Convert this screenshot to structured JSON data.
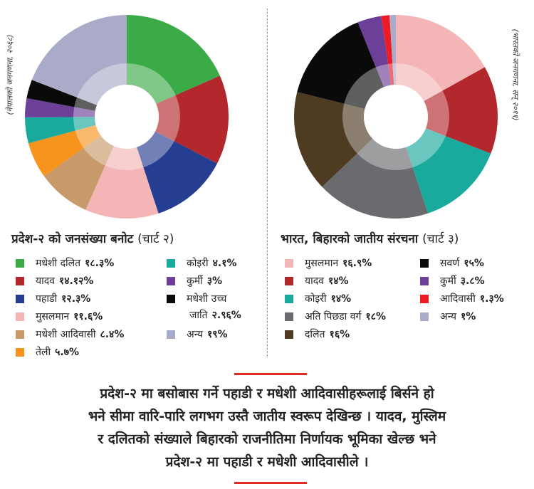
{
  "chart_data": [
    {
      "type": "pie",
      "title": "प्रदेश-२ को जनसंख्या बनोट",
      "chart_number": "(चार्ट २)",
      "source": "(नेपालको जनगणना, २०६८)",
      "categories": [
        "मधेशी दलित",
        "यादव",
        "पहाडी",
        "मुसलमान",
        "मधेशी आदिवासी",
        "तेली",
        "कोइरी",
        "कुर्मी",
        "मधेशी उच्च जाति",
        "अन्य"
      ],
      "values": [
        18.3,
        14.12,
        12.3,
        11.6,
        8.4,
        5.7,
        4.1,
        3,
        2.96,
        19
      ],
      "value_labels": [
        "१८.३%",
        "१४.१२%",
        "१२.३%",
        "११.६%",
        "८.४%",
        "५.७%",
        "४.१%",
        "३%",
        "२.९६%",
        "१९%"
      ],
      "colors": [
        "#3bab48",
        "#b2282c",
        "#263e92",
        "#f3b5b5",
        "#c89a6a",
        "#f7941d",
        "#1aa99d",
        "#6c3f98",
        "#0a0a0a",
        "#a9abc9"
      ]
    },
    {
      "type": "pie",
      "title": "भारत, बिहारको जातीय संरचना",
      "chart_number": "(चार्ट ३)",
      "source": "(भारतको जनगणना, सन् २०११)",
      "categories": [
        "मुसलमान",
        "यादव",
        "कोइरी",
        "अति पिछडा वर्ग",
        "दलित",
        "सवर्ण",
        "कुर्मी",
        "आदिवासी",
        "अन्य"
      ],
      "values": [
        16.9,
        14,
        14,
        18,
        16,
        15,
        3.8,
        1.3,
        1
      ],
      "value_labels": [
        "१६.९%",
        "१४%",
        "१४%",
        "१८%",
        "१६%",
        "१५%",
        "३.८%",
        "१.३%",
        "१%"
      ],
      "colors": [
        "#f3b5b5",
        "#b2282c",
        "#1aa99d",
        "#6a6b6e",
        "#4f3b22",
        "#0a0a0a",
        "#6c3f98",
        "#ec1c24",
        "#a9abc9"
      ]
    }
  ],
  "left_legend_rows": [
    {
      "label": "मधेशी दलित",
      "value": "१८.३%",
      "color": "#3bab48"
    },
    {
      "label": "यादव",
      "value": "१४.१२%",
      "color": "#b2282c"
    },
    {
      "label": "पहाडी",
      "value": "१२.३%",
      "color": "#263e92"
    },
    {
      "label": "मुसलमान",
      "value": "११.६%",
      "color": "#f3b5b5"
    },
    {
      "label": "मधेशी आदिवासी",
      "value": "८.४%",
      "color": "#c89a6a"
    },
    {
      "label": "तेली",
      "value": "५.७%",
      "color": "#f7941d"
    },
    {
      "label": "कोइरी",
      "value": "४.१%",
      "color": "#1aa99d"
    },
    {
      "label": "कुर्मी",
      "value": "३%",
      "color": "#6c3f98"
    },
    {
      "label": "मधेशी उच्च",
      "label_cont": "जाति",
      "value": "२.९६%",
      "color": "#0a0a0a"
    },
    {
      "label": "अन्य",
      "value": "१९%",
      "color": "#a9abc9"
    }
  ],
  "right_legend_rows": [
    {
      "label": "मुसलमान",
      "value": "१६.९%",
      "color": "#f3b5b5"
    },
    {
      "label": "यादव",
      "value": "१४%",
      "color": "#b2282c"
    },
    {
      "label": "कोइरी",
      "value": "१४%",
      "color": "#1aa99d"
    },
    {
      "label": "अति पिछडा वर्ग",
      "value": "१८%",
      "color": "#6a6b6e"
    },
    {
      "label": "दलित",
      "value": "१६%",
      "color": "#4f3b22"
    },
    {
      "label": "सवर्ण",
      "value": "१५%",
      "color": "#0a0a0a"
    },
    {
      "label": "कुर्मी",
      "value": "३.८%",
      "color": "#6c3f98"
    },
    {
      "label": "आदिवासी",
      "value": "१.३%",
      "color": "#ec1c24"
    },
    {
      "label": "अन्य",
      "value": "१%",
      "color": "#a9abc9"
    }
  ],
  "paragraph": {
    "line1": "प्रदेश-२ मा बसोबास गर्ने पहाडी र मधेशी आदिवासीहरूलाई बिर्सने हो",
    "line2": "भने सीमा वारि-पारि लगभग उस्तै जातीय स्वरूप देखिन्छ । यादव, मुस्लिम",
    "line3": "र दलितको संख्याले बिहारको राजनीतिमा निर्णायक भूमिका खेल्छ भने",
    "line4": "प्रदेश-२ मा पहाडी र मधेशी आदिवासीले ।"
  }
}
